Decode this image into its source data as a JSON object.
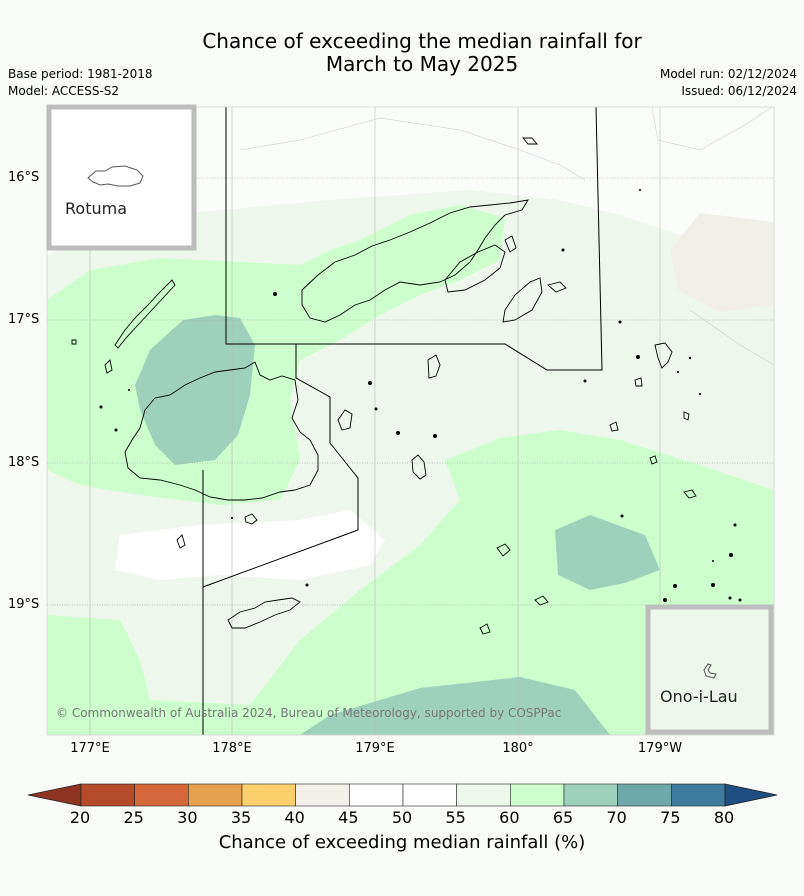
{
  "title": {
    "line1": "Chance of exceeding the median rainfall for",
    "line2": "March to May 2025"
  },
  "meta": {
    "base_period": "Base period: 1981-2018",
    "model": "Model: ACCESS-S2",
    "model_run": "Model run: 02/12/2024",
    "issued": "Issued: 06/12/2024"
  },
  "map": {
    "latitude_labels": [
      "16°S",
      "17°S",
      "18°S",
      "19°S"
    ],
    "longitude_labels": [
      "177°E",
      "178°E",
      "179°E",
      "180°",
      "179°W"
    ],
    "insets": [
      {
        "name": "Rotuma"
      },
      {
        "name": "Ono-i-Lau"
      }
    ],
    "copyright": "© Commonwealth of Australia 2024, Bureau of Meteorology, supported by COSPPac"
  },
  "colorbar": {
    "ticks": [
      "20",
      "25",
      "30",
      "35",
      "40",
      "45",
      "50",
      "55",
      "60",
      "65",
      "70",
      "75",
      "80"
    ],
    "colors": [
      "#8e3420",
      "#b44b2a",
      "#d4683a",
      "#e6a050",
      "#fdd06e",
      "#f3f0ea",
      "#ffffff",
      "#ffffff",
      "#eef7ec",
      "#ccffcc",
      "#9ed1bb",
      "#6fa8a8",
      "#3e7a9e",
      "#1f4f80"
    ],
    "label": "Chance of exceeding median rainfall (%)"
  }
}
